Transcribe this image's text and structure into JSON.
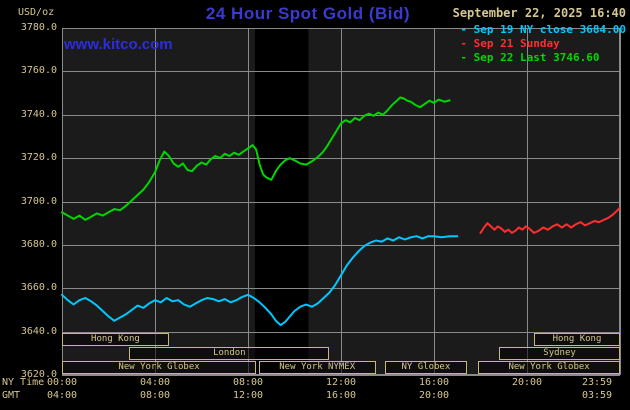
{
  "header": {
    "unit_label": "USD/oz",
    "title": "24 Hour Spot Gold (Bid)",
    "datetime": "September 22, 2025 16:40",
    "watermark": "www.kitco.com",
    "legend": [
      {
        "label": "Sep 19 NY close 3684.00",
        "color": "#00c8ff"
      },
      {
        "label": "Sep 21 Sunday",
        "color": "#ff2e2e"
      },
      {
        "label": "Sep 22 Last 3746.60",
        "color": "#00d600"
      }
    ]
  },
  "axes": {
    "ny_label": "NY Time",
    "gmt_label": "GMT",
    "y_ticks": [
      "3780.0",
      "3760.0",
      "3740.0",
      "3720.0",
      "3700.0",
      "3680.0",
      "3660.0",
      "3640.0",
      "3620.0"
    ],
    "x_ticks": [
      {
        "hour": 0,
        "ny": "00:00",
        "gmt": "04:00"
      },
      {
        "hour": 4,
        "ny": "04:00",
        "gmt": "08:00"
      },
      {
        "hour": 8,
        "ny": "08:00",
        "gmt": "12:00"
      },
      {
        "hour": 12,
        "ny": "12:00",
        "gmt": "16:00"
      },
      {
        "hour": 16,
        "ny": "16:00",
        "gmt": "20:00"
      },
      {
        "hour": 20,
        "ny": "20:00",
        "gmt": ""
      },
      {
        "hour": 23.983,
        "ny": "23:59",
        "gmt": "03:59"
      }
    ]
  },
  "sessions": [
    {
      "row": 0,
      "start": 0,
      "end": 4.6,
      "label": "Hong Kong"
    },
    {
      "row": 0,
      "start": 20.3,
      "end": 24,
      "label": "Hong Kong"
    },
    {
      "row": 1,
      "start": 2.9,
      "end": 11.5,
      "label": "London"
    },
    {
      "row": 1,
      "start": 18.8,
      "end": 24,
      "label": "Sydney"
    },
    {
      "row": 2,
      "start": 0,
      "end": 8.35,
      "label": "New York Globex"
    },
    {
      "row": 2,
      "start": 8.45,
      "end": 13.5,
      "label": "New York NYMEX"
    },
    {
      "row": 2,
      "start": 13.9,
      "end": 17.4,
      "label": "NY Globex"
    },
    {
      "row": 2,
      "start": 17.9,
      "end": 24,
      "label": "New York Globex"
    }
  ],
  "colors": {
    "background": "#000000",
    "plot_bg": "#1b1b1b",
    "band": "#000000",
    "grid": "#8a8a8a",
    "axis_text": "#d6c690",
    "title_color": "#3a3ad0",
    "watermark_color": "#2c2ce0",
    "session_border": "#c9b87a"
  },
  "chart_data": {
    "type": "line",
    "title": "24 Hour Spot Gold (Bid)",
    "x_unit": "hour (NY time)",
    "y_unit": "USD/oz",
    "xlim": [
      0,
      24
    ],
    "ylim": [
      3620,
      3780
    ],
    "grid": true,
    "legend_position": "top-right",
    "shaded_bands": [
      [
        8.3,
        10.6
      ]
    ],
    "series": [
      {
        "id": "sep19",
        "name": "Sep 19 NY close",
        "color": "#00c8ff",
        "close": 3684.0,
        "points": [
          [
            0,
            3657
          ],
          [
            0.25,
            3654.5
          ],
          [
            0.5,
            3652.5
          ],
          [
            0.75,
            3654.5
          ],
          [
            1,
            3655.5
          ],
          [
            1.25,
            3654
          ],
          [
            1.5,
            3652
          ],
          [
            1.75,
            3649.5
          ],
          [
            2,
            3647
          ],
          [
            2.25,
            3645
          ],
          [
            2.5,
            3646.5
          ],
          [
            2.75,
            3648
          ],
          [
            3,
            3650
          ],
          [
            3.25,
            3652
          ],
          [
            3.5,
            3651
          ],
          [
            3.75,
            3653
          ],
          [
            4,
            3654.5
          ],
          [
            4.25,
            3653.5
          ],
          [
            4.5,
            3655.5
          ],
          [
            4.75,
            3654
          ],
          [
            5,
            3654.5
          ],
          [
            5.25,
            3652.5
          ],
          [
            5.5,
            3651.5
          ],
          [
            5.75,
            3653
          ],
          [
            6,
            3654.5
          ],
          [
            6.25,
            3655.5
          ],
          [
            6.5,
            3655
          ],
          [
            6.75,
            3654
          ],
          [
            7,
            3655
          ],
          [
            7.25,
            3653.5
          ],
          [
            7.5,
            3654.5
          ],
          [
            7.75,
            3656
          ],
          [
            8,
            3657
          ],
          [
            8.25,
            3655.5
          ],
          [
            8.5,
            3653.5
          ],
          [
            8.75,
            3651
          ],
          [
            9,
            3648
          ],
          [
            9.2,
            3645
          ],
          [
            9.4,
            3643
          ],
          [
            9.6,
            3644.5
          ],
          [
            9.8,
            3647
          ],
          [
            10,
            3649.5
          ],
          [
            10.25,
            3651.5
          ],
          [
            10.5,
            3652.5
          ],
          [
            10.75,
            3651.5
          ],
          [
            11,
            3653
          ],
          [
            11.25,
            3655.5
          ],
          [
            11.5,
            3658
          ],
          [
            11.75,
            3661.5
          ],
          [
            12,
            3666
          ],
          [
            12.25,
            3670.5
          ],
          [
            12.5,
            3674
          ],
          [
            12.75,
            3677
          ],
          [
            13,
            3679.5
          ],
          [
            13.25,
            3681
          ],
          [
            13.5,
            3682
          ],
          [
            13.75,
            3681.5
          ],
          [
            14,
            3683
          ],
          [
            14.25,
            3682
          ],
          [
            14.5,
            3683.5
          ],
          [
            14.75,
            3682.5
          ],
          [
            15,
            3683.5
          ],
          [
            15.25,
            3684
          ],
          [
            15.5,
            3683
          ],
          [
            15.75,
            3684
          ],
          [
            16,
            3684
          ],
          [
            16.33,
            3683.5
          ],
          [
            16.67,
            3684
          ],
          [
            17,
            3684
          ]
        ]
      },
      {
        "id": "sep21",
        "name": "Sep 21 Sunday",
        "color": "#ff2e2e",
        "points": [
          [
            18,
            3685.5
          ],
          [
            18.15,
            3688
          ],
          [
            18.3,
            3690
          ],
          [
            18.45,
            3688.5
          ],
          [
            18.6,
            3687
          ],
          [
            18.75,
            3688.5
          ],
          [
            18.9,
            3687.5
          ],
          [
            19.05,
            3686
          ],
          [
            19.2,
            3687
          ],
          [
            19.35,
            3685.5
          ],
          [
            19.5,
            3686.5
          ],
          [
            19.65,
            3688
          ],
          [
            19.8,
            3687
          ],
          [
            19.95,
            3688.5
          ],
          [
            20.1,
            3687.5
          ],
          [
            20.3,
            3685.5
          ],
          [
            20.5,
            3686.5
          ],
          [
            20.7,
            3688
          ],
          [
            20.9,
            3687
          ],
          [
            21.1,
            3688.5
          ],
          [
            21.3,
            3689.5
          ],
          [
            21.5,
            3688
          ],
          [
            21.7,
            3689.5
          ],
          [
            21.9,
            3688
          ],
          [
            22.1,
            3689.5
          ],
          [
            22.3,
            3690.5
          ],
          [
            22.5,
            3689
          ],
          [
            22.7,
            3690
          ],
          [
            22.9,
            3691
          ],
          [
            23.1,
            3690.5
          ],
          [
            23.3,
            3691.5
          ],
          [
            23.5,
            3692.5
          ],
          [
            23.7,
            3694
          ],
          [
            23.85,
            3695.5
          ],
          [
            23.98,
            3697
          ]
        ]
      },
      {
        "id": "sep22",
        "name": "Sep 22",
        "color": "#00d600",
        "last": 3746.6,
        "points": [
          [
            0,
            3695
          ],
          [
            0.25,
            3693.5
          ],
          [
            0.5,
            3692
          ],
          [
            0.75,
            3693.5
          ],
          [
            1,
            3691.5
          ],
          [
            1.25,
            3693
          ],
          [
            1.5,
            3694.5
          ],
          [
            1.75,
            3693.5
          ],
          [
            2,
            3695
          ],
          [
            2.25,
            3696.5
          ],
          [
            2.5,
            3696
          ],
          [
            2.75,
            3698
          ],
          [
            3,
            3700.5
          ],
          [
            3.25,
            3703
          ],
          [
            3.5,
            3705.5
          ],
          [
            3.75,
            3709
          ],
          [
            4,
            3713.5
          ],
          [
            4.2,
            3719
          ],
          [
            4.4,
            3723
          ],
          [
            4.6,
            3721
          ],
          [
            4.8,
            3717.5
          ],
          [
            5,
            3716
          ],
          [
            5.2,
            3717.5
          ],
          [
            5.4,
            3714.5
          ],
          [
            5.6,
            3714
          ],
          [
            5.8,
            3716.5
          ],
          [
            6,
            3718
          ],
          [
            6.2,
            3717
          ],
          [
            6.4,
            3719.5
          ],
          [
            6.6,
            3721
          ],
          [
            6.8,
            3720
          ],
          [
            7,
            3722
          ],
          [
            7.2,
            3721
          ],
          [
            7.4,
            3722.5
          ],
          [
            7.6,
            3721.5
          ],
          [
            7.8,
            3723
          ],
          [
            8,
            3724.5
          ],
          [
            8.2,
            3726
          ],
          [
            8.35,
            3724
          ],
          [
            8.5,
            3717
          ],
          [
            8.65,
            3712.5
          ],
          [
            8.8,
            3711
          ],
          [
            9,
            3710
          ],
          [
            9.2,
            3714
          ],
          [
            9.4,
            3717
          ],
          [
            9.6,
            3719
          ],
          [
            9.8,
            3720
          ],
          [
            10,
            3719
          ],
          [
            10.25,
            3717.5
          ],
          [
            10.5,
            3717
          ],
          [
            10.75,
            3718.5
          ],
          [
            11,
            3720.5
          ],
          [
            11.2,
            3722.5
          ],
          [
            11.4,
            3725.5
          ],
          [
            11.6,
            3729
          ],
          [
            11.8,
            3732.5
          ],
          [
            12,
            3736
          ],
          [
            12.2,
            3737.5
          ],
          [
            12.4,
            3736.5
          ],
          [
            12.6,
            3738.5
          ],
          [
            12.8,
            3737.5
          ],
          [
            13,
            3739.5
          ],
          [
            13.2,
            3740.5
          ],
          [
            13.4,
            3739.5
          ],
          [
            13.6,
            3741
          ],
          [
            13.8,
            3740
          ],
          [
            14,
            3742
          ],
          [
            14.2,
            3744.5
          ],
          [
            14.4,
            3746.5
          ],
          [
            14.55,
            3748
          ],
          [
            14.7,
            3747.5
          ],
          [
            14.85,
            3746.5
          ],
          [
            15,
            3746
          ],
          [
            15.2,
            3744.5
          ],
          [
            15.4,
            3743.5
          ],
          [
            15.6,
            3745
          ],
          [
            15.8,
            3746.5
          ],
          [
            16,
            3745.5
          ],
          [
            16.2,
            3747
          ],
          [
            16.45,
            3746
          ],
          [
            16.67,
            3746.6
          ]
        ]
      }
    ]
  }
}
